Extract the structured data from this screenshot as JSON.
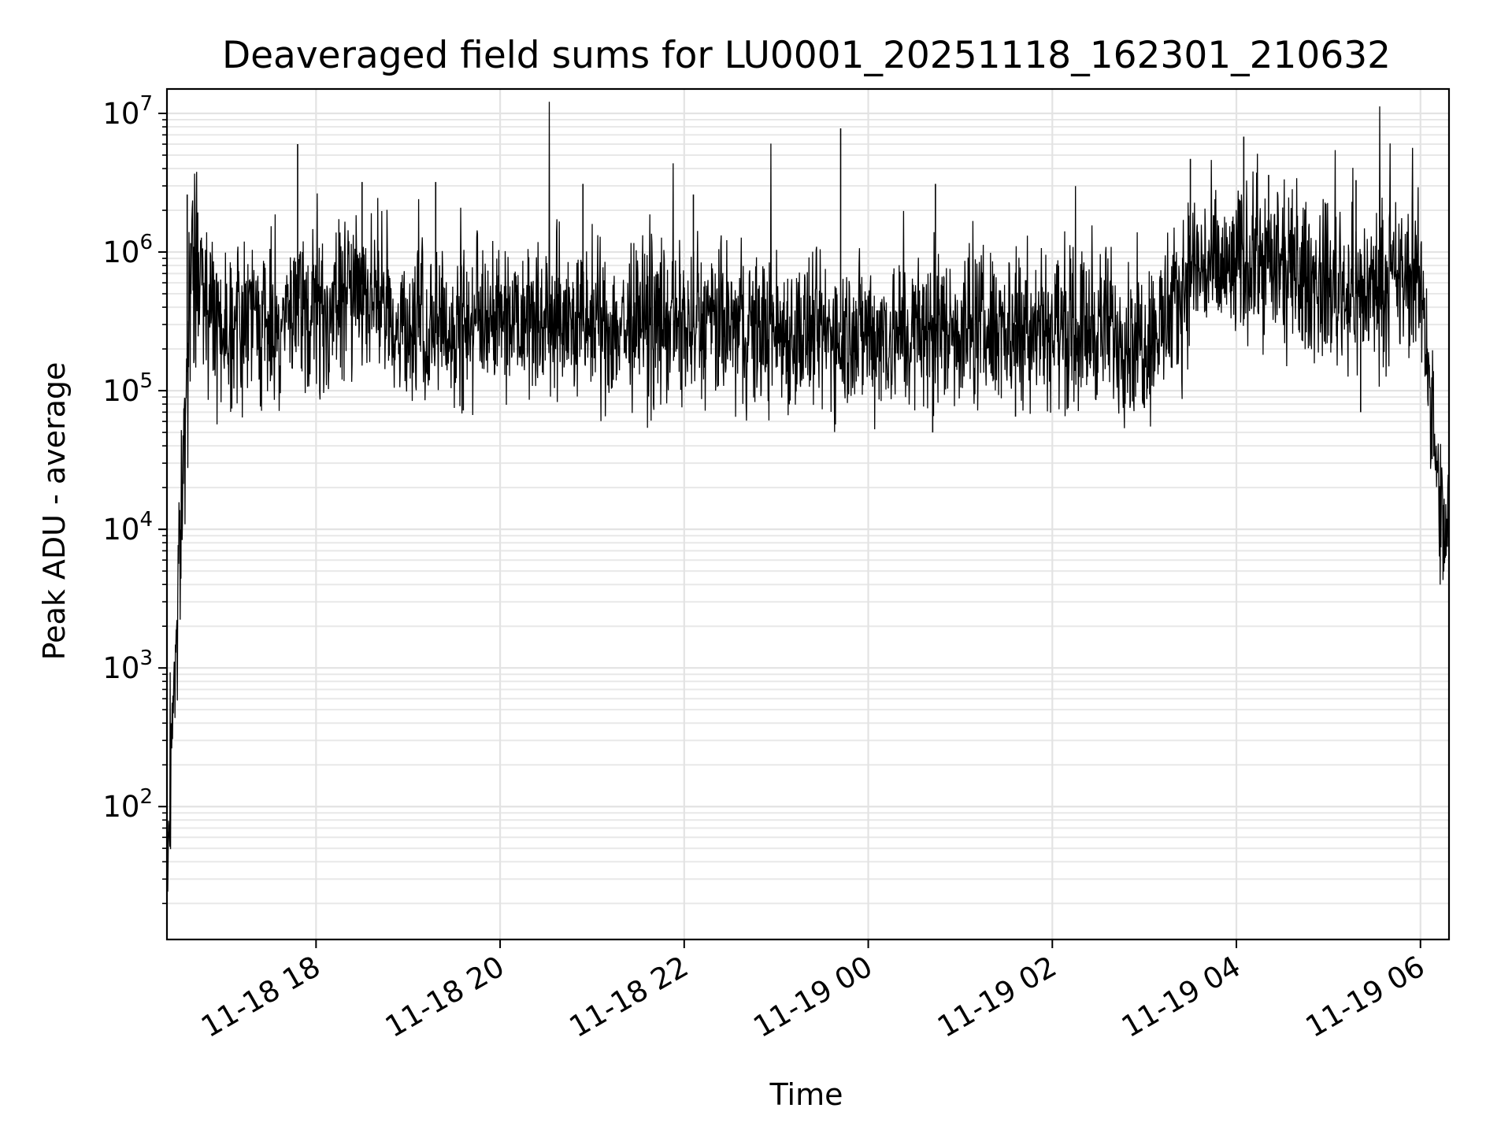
{
  "chart_data": {
    "type": "line",
    "title": "Deaveraged field sums for LU0001_20251118_162301_210632",
    "xlabel": "Time",
    "ylabel": "Peak ADU - average",
    "yscale": "log",
    "ylim": [
      11,
      15000000
    ],
    "xlim_hours": [
      16.38,
      30.31
    ],
    "grid": true,
    "line_color": "#000000",
    "x_ticks": [
      {
        "hour": 18,
        "label": "11-18 18"
      },
      {
        "hour": 20,
        "label": "11-18 20"
      },
      {
        "hour": 22,
        "label": "11-18 22"
      },
      {
        "hour": 24,
        "label": "11-19 00"
      },
      {
        "hour": 26,
        "label": "11-19 02"
      },
      {
        "hour": 28,
        "label": "11-19 04"
      },
      {
        "hour": 30,
        "label": "11-19 06"
      }
    ],
    "y_ticks": [
      {
        "value": 100,
        "base": "10",
        "exp": "2"
      },
      {
        "value": 1000,
        "base": "10",
        "exp": "3"
      },
      {
        "value": 10000,
        "base": "10",
        "exp": "4"
      },
      {
        "value": 100000,
        "base": "10",
        "exp": "5"
      },
      {
        "value": 1000000,
        "base": "10",
        "exp": "6"
      },
      {
        "value": 10000000,
        "base": "10",
        "exp": "7"
      }
    ],
    "series": [
      {
        "name": "Peak ADU - average",
        "x_hours": [
          16.38,
          16.42,
          16.46,
          16.5,
          16.54,
          16.58,
          16.62,
          16.68,
          16.75,
          16.85,
          17.0,
          17.25,
          17.5,
          17.8,
          18.1,
          18.3,
          18.45,
          18.6,
          18.8,
          19.0,
          19.3,
          19.6,
          19.9,
          20.2,
          20.5,
          20.8,
          21.1,
          21.4,
          21.7,
          22.0,
          22.3,
          22.6,
          22.9,
          23.2,
          23.5,
          23.8,
          24.1,
          24.4,
          24.7,
          25.0,
          25.3,
          25.6,
          25.9,
          26.2,
          26.5,
          26.8,
          27.0,
          27.2,
          27.35,
          27.5,
          27.7,
          27.9,
          28.1,
          28.3,
          28.5,
          28.7,
          28.9,
          29.1,
          29.3,
          29.5,
          29.7,
          29.9,
          30.0,
          30.05,
          30.1,
          30.15,
          30.2,
          30.25,
          30.31
        ],
        "y_values": [
          20,
          250,
          900,
          3500,
          12000,
          80000,
          400000,
          750000,
          700000,
          400000,
          300000,
          320000,
          280000,
          350000,
          320000,
          450000,
          600000,
          550000,
          330000,
          280000,
          260000,
          300000,
          350000,
          400000,
          330000,
          300000,
          290000,
          280000,
          300000,
          280000,
          300000,
          270000,
          280000,
          260000,
          250000,
          270000,
          260000,
          250000,
          270000,
          290000,
          280000,
          300000,
          320000,
          260000,
          300000,
          250000,
          240000,
          300000,
          380000,
          800000,
          750000,
          700000,
          850000,
          900000,
          700000,
          650000,
          600000,
          550000,
          500000,
          550000,
          600000,
          650000,
          600000,
          350000,
          110000,
          40000,
          15000,
          8000,
          10000
        ],
        "spikes": [
          {
            "hour": 16.6,
            "value": 2600000
          },
          {
            "hour": 17.8,
            "value": 6000000
          },
          {
            "hour": 18.5,
            "value": 3200000
          },
          {
            "hour": 19.3,
            "value": 3200000
          },
          {
            "hour": 20.9,
            "value": 3100000
          },
          {
            "hour": 22.1,
            "value": 2600000
          },
          {
            "hour": 23.7,
            "value": 7800000
          },
          {
            "hour": 24.73,
            "value": 3100000
          },
          {
            "hour": 27.5,
            "value": 4700000
          },
          {
            "hour": 28.08,
            "value": 6800000
          },
          {
            "hour": 28.35,
            "value": 3600000
          },
          {
            "hour": 29.3,
            "value": 3300000
          }
        ],
        "dips": [
          {
            "hour": 24.7,
            "value": 50000
          },
          {
            "hour": 29.35,
            "value": 70000
          },
          {
            "hour": 19.6,
            "value": 72000
          },
          {
            "hour": 25.6,
            "value": 65000
          },
          {
            "hour": 27.0,
            "value": 75000
          }
        ]
      }
    ]
  }
}
